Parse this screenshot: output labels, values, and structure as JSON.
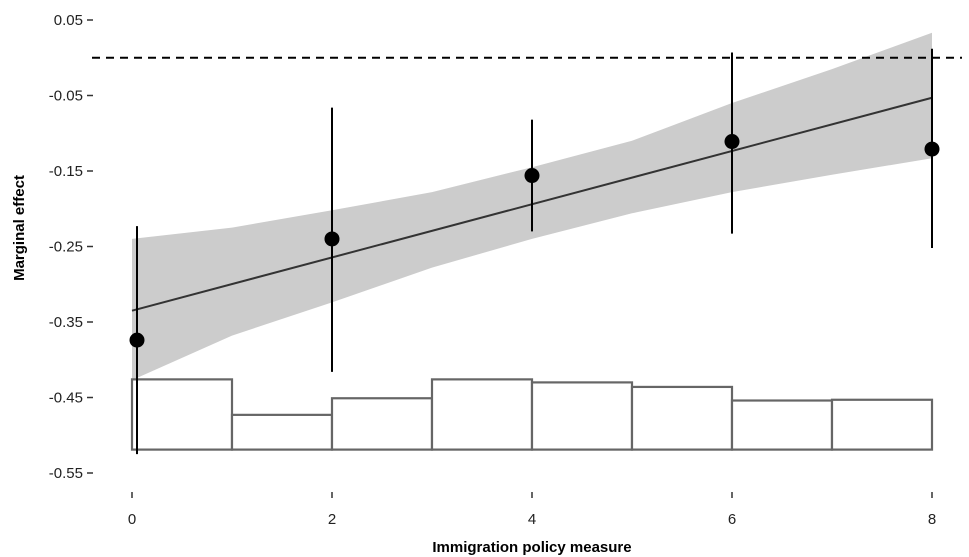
{
  "chart_data": {
    "type": "scatter",
    "xlabel": "Immigration policy measure",
    "ylabel": "Marginal effect",
    "xlim": [
      0,
      8
    ],
    "ylim": [
      -0.55,
      0.05
    ],
    "x_ticks": [
      0,
      2,
      4,
      6,
      8
    ],
    "y_ticks": [
      0.05,
      -0.05,
      -0.15,
      -0.25,
      -0.35,
      -0.45,
      -0.55
    ],
    "x_tick_labels": [
      "0",
      "2",
      "4",
      "6",
      "8"
    ],
    "y_tick_labels": [
      "0.05",
      "-0.05",
      "-0.15",
      "-0.25",
      "-0.35",
      "-0.45",
      "-0.55"
    ],
    "grid": false,
    "reference_line": {
      "y": 0,
      "style": "dashed"
    },
    "points": [
      {
        "x": 0.05,
        "y": -0.374,
        "lower": -0.525,
        "upper": -0.223
      },
      {
        "x": 2,
        "y": -0.24,
        "lower": -0.416,
        "upper": -0.066
      },
      {
        "x": 4,
        "y": -0.156,
        "lower": -0.23,
        "upper": -0.082
      },
      {
        "x": 6,
        "y": -0.111,
        "lower": -0.233,
        "upper": 0.007
      },
      {
        "x": 8,
        "y": -0.121,
        "lower": -0.252,
        "upper": 0.012
      }
    ],
    "fit_line": {
      "x": [
        0,
        8
      ],
      "y": [
        -0.335,
        -0.053
      ]
    },
    "confidence_band": {
      "x": [
        0,
        1,
        2,
        3,
        4,
        5,
        6,
        7,
        8
      ],
      "lower": [
        -0.427,
        -0.368,
        -0.324,
        -0.278,
        -0.24,
        -0.206,
        -0.178,
        -0.155,
        -0.133
      ],
      "upper": [
        -0.24,
        -0.225,
        -0.202,
        -0.178,
        -0.145,
        -0.11,
        -0.06,
        -0.015,
        0.033
      ]
    },
    "histogram": {
      "bin_edges": [
        0,
        1,
        2,
        3,
        4,
        5,
        6,
        7,
        8
      ],
      "base": -0.519,
      "tops": [
        -0.426,
        -0.473,
        -0.451,
        -0.426,
        -0.43,
        -0.436,
        -0.454,
        -0.453
      ]
    },
    "colors": {
      "points": "#000000",
      "fit_line": "#333333",
      "band": "#cccccc",
      "histogram_stroke": "#666666",
      "histogram_fill": "#ffffff",
      "axis": "#333333"
    }
  }
}
